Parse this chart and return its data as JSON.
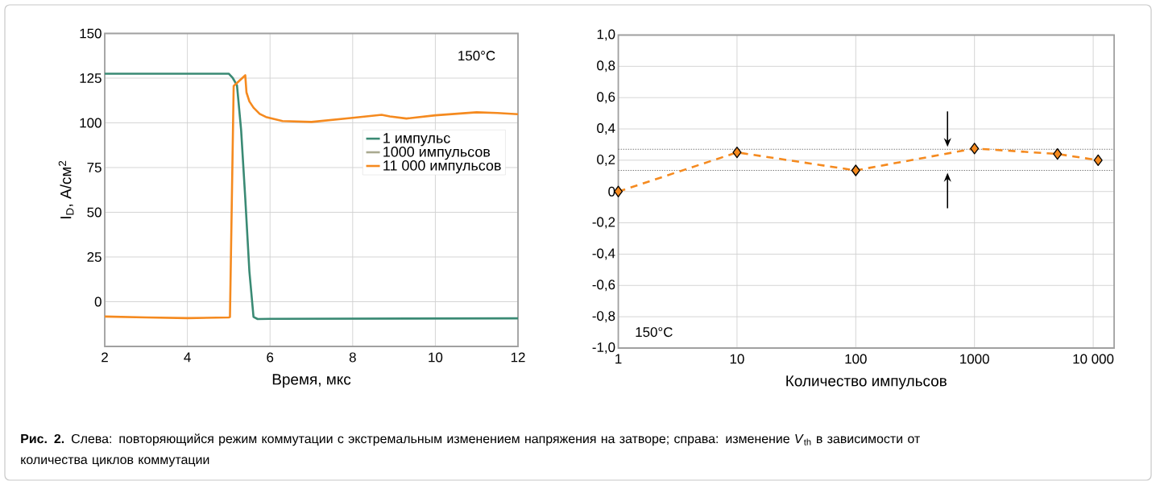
{
  "chart_data": [
    {
      "type": "line",
      "xlabel": "Время, мкс",
      "ylabel": "I$_{D}$, A/см$^{2}$",
      "xlim": [
        2,
        12
      ],
      "ylim": [
        -25,
        150
      ],
      "xticks": [
        2,
        4,
        6,
        8,
        10,
        12
      ],
      "yticks": [
        0,
        25,
        50,
        75,
        100,
        125,
        150
      ],
      "grid": true,
      "legend": "right",
      "annotations": [
        "150°C",
        "**Рис. 2.** Слева: повторяющийся режим коммутации с экстремальным изменением напряжения на затворе; справа: изменение *V*$_{th}$ в зависимости от количества циклов коммутации"
      ],
      "series": [
        {
          "name": "1 импульс",
          "color": "#3a8a74",
          "x": [
            2,
            5,
            5.1,
            5.2,
            5.3,
            5.4,
            5.5,
            5.6,
            5.7,
            6,
            8,
            10,
            12
          ],
          "values": [
            127.5,
            127.5,
            125,
            121,
            96,
            58,
            17,
            -8.5,
            -9.7,
            -9.6,
            -9.5,
            -9.4,
            -9.3
          ]
        },
        {
          "name": "1000 импульсов",
          "color": "#a9a98f"
        },
        {
          "name": "11 000 импульсов",
          "color": "#f58a1f",
          "x": [
            2,
            3,
            4,
            5,
            5.03,
            5.12,
            5.4,
            5.43,
            5.5,
            5.6,
            5.75,
            5.9,
            6.3,
            7,
            8,
            8.7,
            8.9,
            9.3,
            10,
            11,
            11.5,
            12
          ],
          "values": [
            -8.3,
            -8.8,
            -9.2,
            -8.8,
            -8.6,
            120.6,
            126.6,
            117,
            112,
            108.5,
            105,
            103.3,
            101,
            100.5,
            102.8,
            104.5,
            103.6,
            102.4,
            104.2,
            105.9,
            105.5,
            104.8
          ]
        }
      ]
    },
    {
      "type": "line",
      "xlabel": "Количество импульсов",
      "log": "x",
      "xlim": [
        1,
        15000
      ],
      "ylim": [
        -1,
        1
      ],
      "xticks": [
        1,
        10,
        100,
        1000,
        {
          "value": 10000,
          "label": "10 000"
        }
      ],
      "yticks": [
        {
          "value": -1,
          "label": "-1,0"
        },
        {
          "value": -0.8,
          "label": "-0,8"
        },
        {
          "value": -0.6,
          "label": "-0,6"
        },
        {
          "value": -0.4,
          "label": "-0,4"
        },
        {
          "value": -0.2,
          "label": "-0,2"
        },
        0,
        {
          "value": 0.2,
          "label": "0,2"
        },
        {
          "value": 0.4,
          "label": "0,4"
        },
        {
          "value": 0.6,
          "label": "0,6"
        },
        {
          "value": 0.8,
          "label": "0,8"
        },
        {
          "value": 1,
          "label": "1,0"
        }
      ],
      "grid": true,
      "annotations": [
        "150°C"
      ],
      "ref_lines": [
        {
          "axis": "y",
          "value": 0.27,
          "color": "#808080",
          "line_style": "dotted"
        },
        {
          "axis": "y",
          "value": 0.135,
          "color": "#808080",
          "line_style": "dotted"
        }
      ],
      "series": [
        {
          "color": "#f58a1f",
          "x": [
            1,
            10,
            100,
            1000,
            5000,
            11000
          ],
          "values": [
            0,
            0.25,
            0.135,
            0.275,
            0.24,
            0.2
          ],
          "marker": "diamond",
          "line_style": "dashed"
        }
      ]
    }
  ]
}
